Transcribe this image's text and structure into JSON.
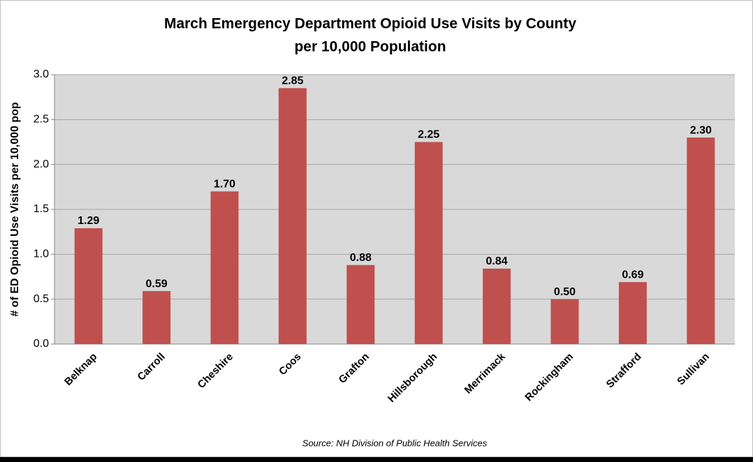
{
  "chart_data": {
    "type": "bar",
    "title": [
      "March Emergency Department Opioid Use Visits by County",
      "per 10,000 Population"
    ],
    "y_label": "# of ED Opioid Use Visits per 10,000 pop",
    "source": "Source: NH Division of Public Health Services",
    "categories": [
      "Belknap",
      "Carroll",
      "Cheshire",
      "Coos",
      "Grafton",
      "Hillsborough",
      "Merrimack",
      "Rockingham",
      "Strafford",
      "Sullivan"
    ],
    "values": [
      1.29,
      0.59,
      1.7,
      2.85,
      0.88,
      2.25,
      0.84,
      0.5,
      0.69,
      2.3
    ],
    "value_labels": [
      "1.29",
      "0.59",
      "1.70",
      "2.85",
      "0.88",
      "2.25",
      "0.84",
      "0.50",
      "0.69",
      "2.30"
    ],
    "color": "#c0504d",
    "ylim": [
      0,
      3
    ],
    "yticks": [
      {
        "value": 0,
        "label": "0.0"
      },
      0.5,
      {
        "value": 1,
        "label": "1.0"
      },
      1.5,
      {
        "value": 2,
        "label": "2.0"
      },
      2.5,
      {
        "value": 3,
        "label": "3.0"
      }
    ],
    "grid": true
  }
}
